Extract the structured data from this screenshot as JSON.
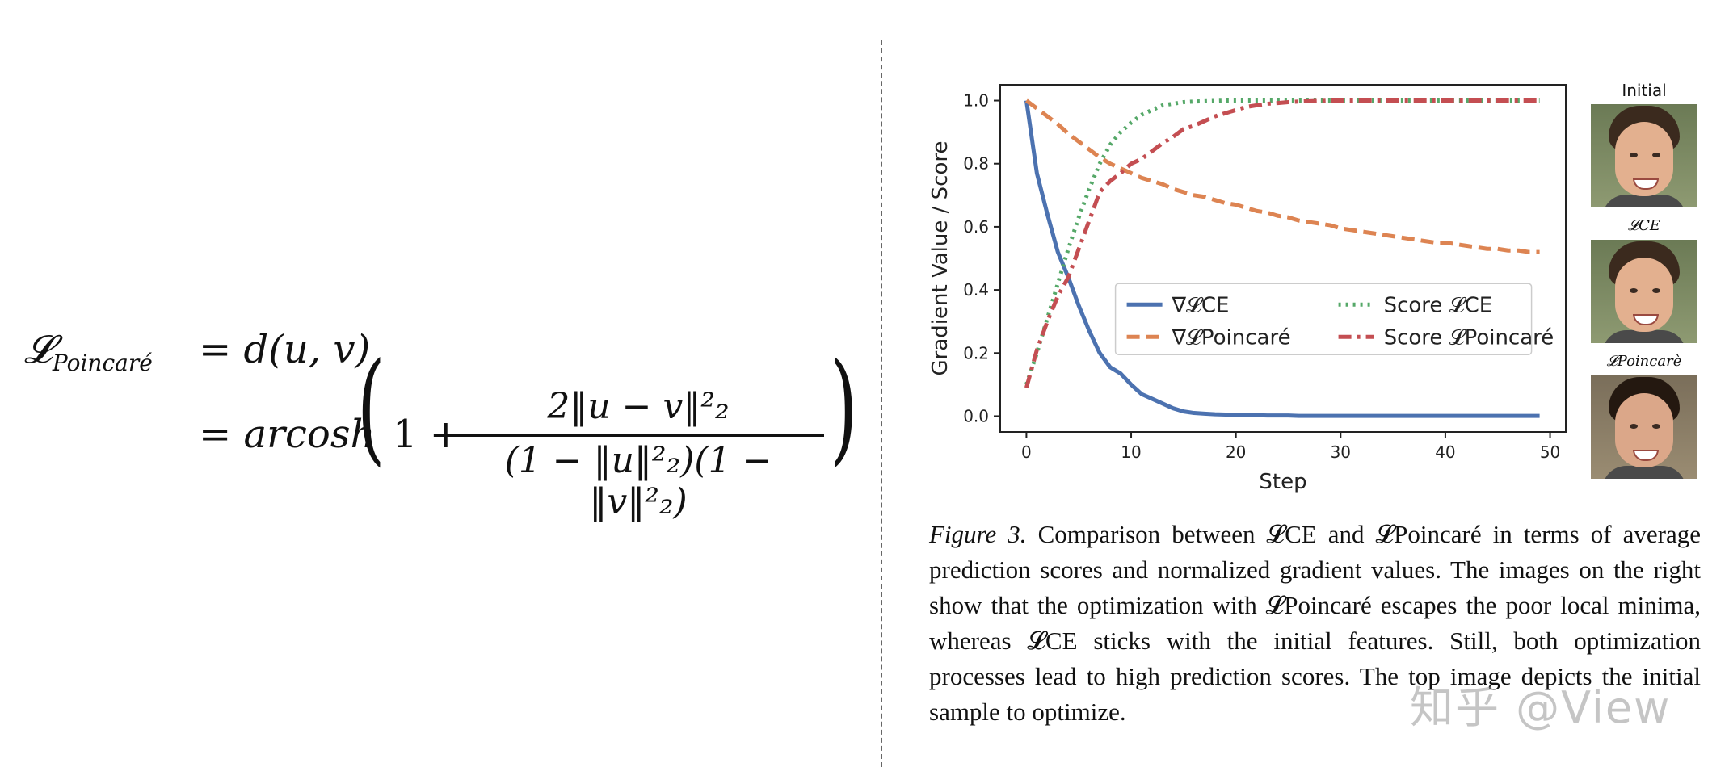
{
  "equation": {
    "lhs": "𝓛",
    "lhs_sub": "Poincaré",
    "line1_rhs": "= d(u, v)",
    "line2_prefix": "= arcosh",
    "paren_open": "(",
    "paren_close": ")",
    "one_plus": "1 +",
    "numerator": "2‖u − v‖²₂",
    "denominator": "(1 − ‖u‖²₂)(1 − ‖v‖²₂)"
  },
  "faces": {
    "labels": [
      "Initial",
      "𝓛CE",
      "𝓛Poincarè"
    ]
  },
  "caption": {
    "lead": "Figure 3.",
    "text": "Comparison between 𝓛CE and 𝓛Poincaré in terms of average prediction scores and normalized gradient values. The images on the right show that the optimization with 𝓛Poincaré escapes the poor local minima, whereas 𝓛CE sticks with the initial features. Still, both optimization processes lead to high prediction scores. The top image depicts the initial sample to optimize."
  },
  "watermark": "知乎 @View",
  "chart_data": {
    "type": "line",
    "xlabel": "Step",
    "ylabel": "Gradient Value / Score",
    "xlim": [
      -2.5,
      51.5
    ],
    "ylim": [
      -0.05,
      1.05
    ],
    "xticks": [
      0,
      10,
      20,
      30,
      40,
      50
    ],
    "yticks": [
      0.0,
      0.2,
      0.4,
      0.6,
      0.8,
      1.0
    ],
    "ytick_labels": [
      "0.0",
      "0.2",
      "0.4",
      "0.6",
      "0.8",
      "1.0"
    ],
    "legend_position": "center-right",
    "x": [
      0,
      1,
      2,
      3,
      4,
      5,
      6,
      7,
      8,
      9,
      10,
      11,
      12,
      13,
      14,
      15,
      16,
      17,
      18,
      19,
      20,
      21,
      22,
      23,
      24,
      25,
      26,
      27,
      28,
      29,
      30,
      31,
      32,
      33,
      34,
      35,
      36,
      37,
      38,
      39,
      40,
      41,
      42,
      43,
      44,
      45,
      46,
      47,
      48,
      49
    ],
    "series": [
      {
        "name": "∇𝓛CE",
        "color": "#4c72b0",
        "dash": "solid",
        "values": [
          1.0,
          0.77,
          0.64,
          0.52,
          0.44,
          0.35,
          0.27,
          0.2,
          0.155,
          0.135,
          0.1,
          0.07,
          0.055,
          0.04,
          0.025,
          0.015,
          0.01,
          0.008,
          0.006,
          0.005,
          0.004,
          0.003,
          0.003,
          0.002,
          0.002,
          0.002,
          0.001,
          0.001,
          0.001,
          0.001,
          0.001,
          0.001,
          0.001,
          0.001,
          0.001,
          0.001,
          0.001,
          0.001,
          0.001,
          0.001,
          0.001,
          0.001,
          0.001,
          0.001,
          0.001,
          0.001,
          0.001,
          0.001,
          0.001,
          0.001
        ]
      },
      {
        "name": "∇𝓛Poincaré",
        "color": "#dd8452",
        "dash": "dashed",
        "values": [
          1.0,
          0.975,
          0.95,
          0.925,
          0.895,
          0.87,
          0.845,
          0.82,
          0.8,
          0.785,
          0.77,
          0.755,
          0.745,
          0.735,
          0.72,
          0.71,
          0.7,
          0.695,
          0.685,
          0.675,
          0.67,
          0.66,
          0.65,
          0.645,
          0.635,
          0.63,
          0.62,
          0.615,
          0.61,
          0.605,
          0.595,
          0.59,
          0.585,
          0.58,
          0.575,
          0.57,
          0.565,
          0.56,
          0.555,
          0.55,
          0.55,
          0.545,
          0.54,
          0.535,
          0.53,
          0.53,
          0.525,
          0.525,
          0.52,
          0.52
        ]
      },
      {
        "name": "Score 𝓛CE",
        "color": "#55a868",
        "dash": "dotted",
        "values": [
          0.1,
          0.2,
          0.31,
          0.42,
          0.53,
          0.63,
          0.72,
          0.8,
          0.86,
          0.9,
          0.93,
          0.955,
          0.97,
          0.985,
          0.99,
          0.995,
          0.997,
          0.998,
          0.999,
          1.0,
          1.0,
          1.0,
          1.0,
          1.0,
          1.0,
          1.0,
          1.0,
          1.0,
          1.0,
          1.0,
          1.0,
          1.0,
          1.0,
          1.0,
          1.0,
          1.0,
          1.0,
          1.0,
          1.0,
          1.0,
          1.0,
          1.0,
          1.0,
          1.0,
          1.0,
          1.0,
          1.0,
          1.0,
          1.0,
          1.0
        ]
      },
      {
        "name": "Score 𝓛Poincaré",
        "color": "#c44e52",
        "dash": "dashdot",
        "values": [
          0.09,
          0.21,
          0.3,
          0.38,
          0.44,
          0.53,
          0.62,
          0.71,
          0.745,
          0.77,
          0.8,
          0.815,
          0.84,
          0.865,
          0.885,
          0.91,
          0.92,
          0.935,
          0.95,
          0.96,
          0.97,
          0.98,
          0.985,
          0.99,
          0.992,
          0.995,
          0.997,
          0.998,
          0.999,
          1.0,
          1.0,
          1.0,
          1.0,
          1.0,
          1.0,
          1.0,
          1.0,
          1.0,
          1.0,
          1.0,
          1.0,
          1.0,
          1.0,
          1.0,
          1.0,
          1.0,
          1.0,
          1.0,
          1.0,
          1.0
        ]
      }
    ]
  }
}
